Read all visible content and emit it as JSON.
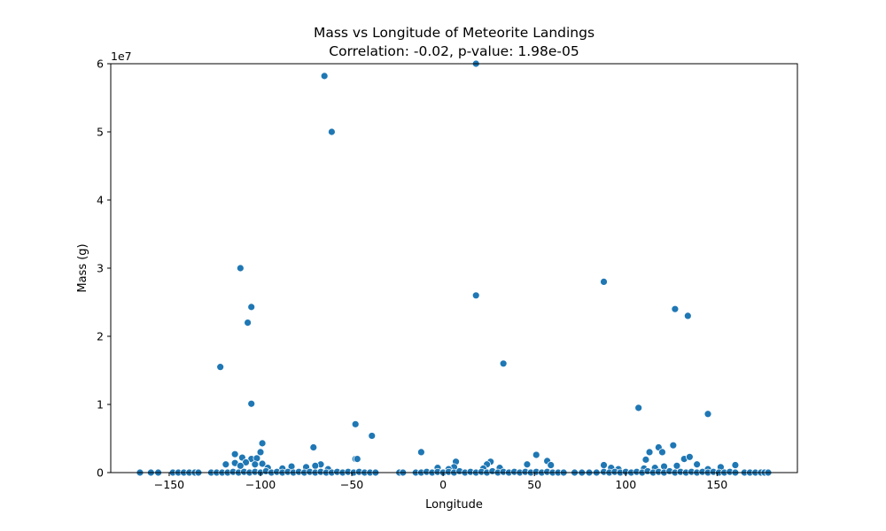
{
  "chart_data": {
    "type": "scatter",
    "title": "Mass vs Longitude of Meteorite Landings",
    "subtitle": "Correlation: -0.02, p-value: 1.98e-05",
    "xlabel": "Longitude",
    "ylabel": "Mass (g)",
    "y_offset_label": "1e7",
    "xlim": [
      -182,
      194
    ],
    "ylim": [
      0,
      60000000
    ],
    "x_ticks": [
      -150,
      -100,
      -50,
      0,
      50,
      100,
      150
    ],
    "x_tick_labels": [
      "−150",
      "−100",
      "−50",
      "0",
      "50",
      "100",
      "150"
    ],
    "y_ticks": [
      0,
      10000000,
      20000000,
      30000000,
      40000000,
      50000000,
      60000000
    ],
    "y_tick_labels": [
      "0",
      "1",
      "2",
      "3",
      "4",
      "5",
      "6"
    ],
    "grid": false,
    "legend": "none",
    "marker_color": "#1f77b4",
    "points": [
      {
        "x": 18,
        "y": 60000000
      },
      {
        "x": -65,
        "y": 58200000
      },
      {
        "x": -61,
        "y": 50000000
      },
      {
        "x": -111,
        "y": 30000000
      },
      {
        "x": 88,
        "y": 28000000
      },
      {
        "x": 18,
        "y": 26000000
      },
      {
        "x": -105,
        "y": 24300000
      },
      {
        "x": 127,
        "y": 24000000
      },
      {
        "x": 134,
        "y": 23000000
      },
      {
        "x": -107,
        "y": 22000000
      },
      {
        "x": 33,
        "y": 16000000
      },
      {
        "x": -122,
        "y": 15500000
      },
      {
        "x": -105,
        "y": 10100000
      },
      {
        "x": 107,
        "y": 9500000
      },
      {
        "x": 145,
        "y": 8600000
      },
      {
        "x": -48,
        "y": 7100000
      },
      {
        "x": -39,
        "y": 5400000
      },
      {
        "x": -99,
        "y": 4300000
      },
      {
        "x": -71,
        "y": 3700000
      },
      {
        "x": 126,
        "y": 4000000
      },
      {
        "x": 118,
        "y": 3700000
      },
      {
        "x": -12,
        "y": 3000000
      },
      {
        "x": -100,
        "y": 3000000
      },
      {
        "x": 113,
        "y": 3000000
      },
      {
        "x": 120,
        "y": 3000000
      },
      {
        "x": -114,
        "y": 2700000
      },
      {
        "x": 51,
        "y": 2600000
      },
      {
        "x": -110,
        "y": 2200000
      },
      {
        "x": -105,
        "y": 2000000
      },
      {
        "x": -102,
        "y": 2100000
      },
      {
        "x": 111,
        "y": 1900000
      },
      {
        "x": 132,
        "y": 2000000
      },
      {
        "x": 135,
        "y": 2300000
      },
      {
        "x": -48,
        "y": 2000000
      },
      {
        "x": -47,
        "y": 2000000
      },
      {
        "x": 57,
        "y": 1700000
      },
      {
        "x": 7,
        "y": 1600000
      },
      {
        "x": 26,
        "y": 1600000
      },
      {
        "x": -108,
        "y": 1500000
      },
      {
        "x": -114,
        "y": 1400000
      },
      {
        "x": -99,
        "y": 1300000
      },
      {
        "x": -119,
        "y": 1200000
      },
      {
        "x": -103,
        "y": 1200000
      },
      {
        "x": -111,
        "y": 1000000
      },
      {
        "x": -67,
        "y": 1200000
      },
      {
        "x": 24,
        "y": 1200000
      },
      {
        "x": 46,
        "y": 1200000
      },
      {
        "x": 59,
        "y": 1100000
      },
      {
        "x": 88,
        "y": 1100000
      },
      {
        "x": 128,
        "y": 1000000
      },
      {
        "x": 139,
        "y": 1200000
      },
      {
        "x": 160,
        "y": 1100000
      },
      {
        "x": -83,
        "y": 900000
      },
      {
        "x": -70,
        "y": 1000000
      },
      {
        "x": -75,
        "y": 800000
      },
      {
        "x": -3,
        "y": 700000
      },
      {
        "x": 6,
        "y": 800000
      },
      {
        "x": 31,
        "y": 700000
      },
      {
        "x": 92,
        "y": 700000
      },
      {
        "x": 121,
        "y": 900000
      },
      {
        "x": 152,
        "y": 800000
      },
      {
        "x": -96,
        "y": 700000
      },
      {
        "x": -88,
        "y": 600000
      },
      {
        "x": 3,
        "y": 500000
      },
      {
        "x": 22,
        "y": 600000
      },
      {
        "x": 96,
        "y": 500000
      },
      {
        "x": 110,
        "y": 600000
      },
      {
        "x": 116,
        "y": 700000
      },
      {
        "x": 145,
        "y": 500000
      },
      {
        "x": -63,
        "y": 500000
      },
      {
        "x": -127,
        "y": 0
      },
      {
        "x": -124,
        "y": 0
      },
      {
        "x": -121,
        "y": 0
      },
      {
        "x": -118,
        "y": 0
      },
      {
        "x": -115,
        "y": 100000
      },
      {
        "x": -112,
        "y": 0
      },
      {
        "x": -109,
        "y": 100000
      },
      {
        "x": -106,
        "y": 0
      },
      {
        "x": -103,
        "y": 100000
      },
      {
        "x": -100,
        "y": 0
      },
      {
        "x": -97,
        "y": 200000
      },
      {
        "x": -94,
        "y": 0
      },
      {
        "x": -91,
        "y": 100000
      },
      {
        "x": -88,
        "y": 0
      },
      {
        "x": -85,
        "y": 100000
      },
      {
        "x": -82,
        "y": 0
      },
      {
        "x": -79,
        "y": 100000
      },
      {
        "x": -76,
        "y": 0
      },
      {
        "x": -73,
        "y": 100000
      },
      {
        "x": -70,
        "y": 0
      },
      {
        "x": -67,
        "y": 100000
      },
      {
        "x": -64,
        "y": 0
      },
      {
        "x": -61,
        "y": 0
      },
      {
        "x": -58,
        "y": 100000
      },
      {
        "x": -55,
        "y": 0
      },
      {
        "x": -52,
        "y": 100000
      },
      {
        "x": -49,
        "y": 0
      },
      {
        "x": -46,
        "y": 100000
      },
      {
        "x": -43,
        "y": 0
      },
      {
        "x": -40,
        "y": 0
      },
      {
        "x": -37,
        "y": 0
      },
      {
        "x": -166,
        "y": 0
      },
      {
        "x": -160,
        "y": 0
      },
      {
        "x": -156,
        "y": 0
      },
      {
        "x": -148,
        "y": 0
      },
      {
        "x": -145,
        "y": 0
      },
      {
        "x": -142,
        "y": 0
      },
      {
        "x": -139,
        "y": 0
      },
      {
        "x": -136,
        "y": 0
      },
      {
        "x": -134,
        "y": 0
      },
      {
        "x": -24,
        "y": 0
      },
      {
        "x": -22,
        "y": 0
      },
      {
        "x": -15,
        "y": 0
      },
      {
        "x": -12,
        "y": 0
      },
      {
        "x": -9,
        "y": 100000
      },
      {
        "x": -6,
        "y": 0
      },
      {
        "x": -3,
        "y": 100000
      },
      {
        "x": 0,
        "y": 0
      },
      {
        "x": 3,
        "y": 100000
      },
      {
        "x": 6,
        "y": 0
      },
      {
        "x": 9,
        "y": 200000
      },
      {
        "x": 12,
        "y": 0
      },
      {
        "x": 15,
        "y": 100000
      },
      {
        "x": 18,
        "y": 0
      },
      {
        "x": 21,
        "y": 100000
      },
      {
        "x": 24,
        "y": 0
      },
      {
        "x": 27,
        "y": 200000
      },
      {
        "x": 30,
        "y": 0
      },
      {
        "x": 33,
        "y": 100000
      },
      {
        "x": 36,
        "y": 0
      },
      {
        "x": 39,
        "y": 100000
      },
      {
        "x": 42,
        "y": 0
      },
      {
        "x": 45,
        "y": 100000
      },
      {
        "x": 48,
        "y": 0
      },
      {
        "x": 51,
        "y": 100000
      },
      {
        "x": 54,
        "y": 0
      },
      {
        "x": 57,
        "y": 100000
      },
      {
        "x": 60,
        "y": 0
      },
      {
        "x": 63,
        "y": 0
      },
      {
        "x": 66,
        "y": 0
      },
      {
        "x": 72,
        "y": 0
      },
      {
        "x": 76,
        "y": 0
      },
      {
        "x": 80,
        "y": 0
      },
      {
        "x": 84,
        "y": 0
      },
      {
        "x": 88,
        "y": 100000
      },
      {
        "x": 91,
        "y": 0
      },
      {
        "x": 94,
        "y": 100000
      },
      {
        "x": 97,
        "y": 0
      },
      {
        "x": 100,
        "y": 100000
      },
      {
        "x": 103,
        "y": 0
      },
      {
        "x": 106,
        "y": 100000
      },
      {
        "x": 109,
        "y": 0
      },
      {
        "x": 112,
        "y": 200000
      },
      {
        "x": 115,
        "y": 0
      },
      {
        "x": 118,
        "y": 100000
      },
      {
        "x": 121,
        "y": 0
      },
      {
        "x": 124,
        "y": 200000
      },
      {
        "x": 127,
        "y": 0
      },
      {
        "x": 130,
        "y": 100000
      },
      {
        "x": 133,
        "y": 0
      },
      {
        "x": 136,
        "y": 100000
      },
      {
        "x": 139,
        "y": 0
      },
      {
        "x": 142,
        "y": 100000
      },
      {
        "x": 145,
        "y": 0
      },
      {
        "x": 148,
        "y": 100000
      },
      {
        "x": 151,
        "y": 0
      },
      {
        "x": 154,
        "y": 0
      },
      {
        "x": 157,
        "y": 100000
      },
      {
        "x": 160,
        "y": 0
      },
      {
        "x": 165,
        "y": 0
      },
      {
        "x": 168,
        "y": 0
      },
      {
        "x": 171,
        "y": 0
      },
      {
        "x": 174,
        "y": 0
      },
      {
        "x": 176,
        "y": 0
      },
      {
        "x": 178,
        "y": 0
      }
    ]
  }
}
